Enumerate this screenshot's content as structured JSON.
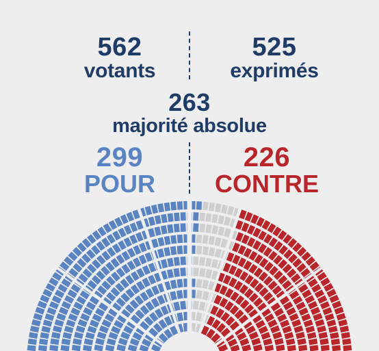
{
  "chart_data": {
    "type": "hemicycle",
    "title": "",
    "summary": {
      "votants": {
        "value": "562",
        "label": "votants"
      },
      "exprimes": {
        "value": "525",
        "label": "exprimés"
      },
      "majorite": {
        "value": "263",
        "label": "majorité absolue"
      }
    },
    "results": {
      "pour": {
        "value": "299",
        "label": "POUR",
        "color": "#5a84c1"
      },
      "contre": {
        "value": "226",
        "label": "CONTRE",
        "color": "#b8262b"
      }
    },
    "seats": {
      "pour": 299,
      "contre": 226,
      "abstention_or_non_voting": 52
    },
    "colors": {
      "navy": "#1f3c66",
      "pour": "#5a84c1",
      "contre": "#b8262b",
      "neutral": "#cfcfcf",
      "background": "#eeeeee"
    }
  }
}
